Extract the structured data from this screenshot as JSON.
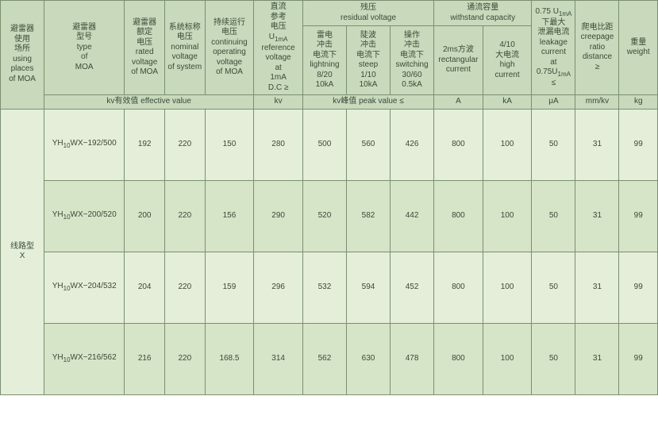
{
  "headers": {
    "places": "避雷器\n使用\n场所\nusing\nplaces\nof MOA",
    "type": "避雷器\n型号\ntype\nof\nMOA",
    "rated": "避雷器\n额定\n电压\nrated\nvoltage\nof MOA",
    "nominal": "系统标称\n电压\nnominal\nvoltage\nof system",
    "continuing": "持续运行\n电压\ncontinuing\noperating\nvoltage\nof MOA",
    "dc": "直流\n参考\n电压\nU1mA\nreference\nvoltage\nat\n1mA\nD.C ≥",
    "rv_group": "残压\nresidual voltage",
    "rv_lightning": "雷电\n冲击\n电流下\nlightning\n8/20\n10kA",
    "rv_steep": "陡波\n冲击\n电流下\nsteep\n1/10\n10kA",
    "rv_switching": "操作\n冲击\n电流下\nswitching\n30/60\n0.5kA",
    "wc_group": "通流容量\nwithstand capacity",
    "wc_rect": "2ms方波\nrectangular\ncurrent",
    "wc_high": "4/10\n大电流\nhigh\ncurrent",
    "leak": "0.75 U1mA\n下最大\n泄漏电流\nleakage\ncurrent\nat\n0.75U1mA\n≤",
    "creep": "爬电比距\ncreepage\nratio\ndistance\n≥",
    "weight": "重量\nweight"
  },
  "units": {
    "eff": "kv有效值  effective value",
    "kv": "kv",
    "peak": "kv峰值  peak value ≤",
    "A": "A",
    "kA": "kA",
    "uA": "μA",
    "mmkv": "mm/kv",
    "kg": "kg"
  },
  "rowgroup_label": "线路型\nX",
  "rows": [
    {
      "type": "YH10WX−192/500",
      "rated": "192",
      "nominal": "220",
      "cont": "150",
      "dc": "280",
      "rv1": "500",
      "rv2": "560",
      "rv3": "426",
      "wc1": "800",
      "wc2": "100",
      "leak": "50",
      "creep": "31",
      "weight": "99"
    },
    {
      "type": "YH10WX−200/520",
      "rated": "200",
      "nominal": "220",
      "cont": "156",
      "dc": "290",
      "rv1": "520",
      "rv2": "582",
      "rv3": "442",
      "wc1": "800",
      "wc2": "100",
      "leak": "50",
      "creep": "31",
      "weight": "99"
    },
    {
      "type": "YH10WX−204/532",
      "rated": "204",
      "nominal": "220",
      "cont": "159",
      "dc": "296",
      "rv1": "532",
      "rv2": "594",
      "rv3": "452",
      "wc1": "800",
      "wc2": "100",
      "leak": "50",
      "creep": "31",
      "weight": "99"
    },
    {
      "type": "YH10WX−216/562",
      "rated": "216",
      "nominal": "220",
      "cont": "168.5",
      "dc": "314",
      "rv1": "562",
      "rv2": "630",
      "rv3": "478",
      "wc1": "800",
      "wc2": "100",
      "leak": "50",
      "creep": "31",
      "weight": "99"
    }
  ],
  "colors": {
    "border": "#7a9070",
    "header_bg": "#c8d9bc",
    "row_bg": "#e4eed9",
    "row_alt_bg": "#d6e4c8",
    "text": "#3a4a38"
  },
  "fontsizes": {
    "cell": 10,
    "sub": 8
  }
}
